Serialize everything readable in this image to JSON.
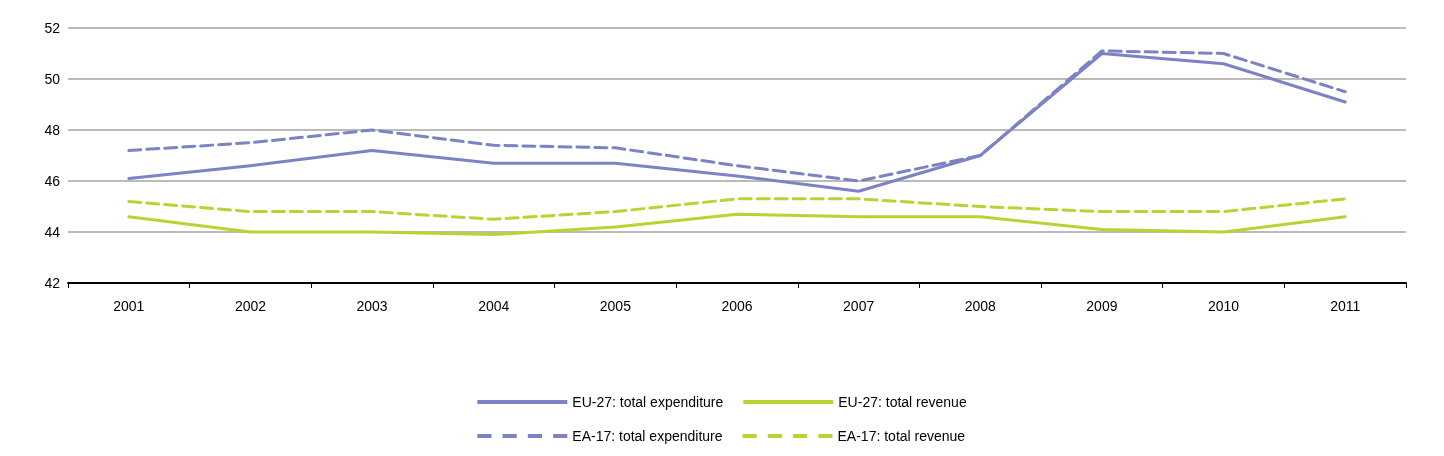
{
  "chart_data": {
    "type": "line",
    "categories": [
      "2001",
      "2002",
      "2003",
      "2004",
      "2005",
      "2006",
      "2007",
      "2008",
      "2009",
      "2010",
      "2011"
    ],
    "series": [
      {
        "name": "EU-27: total expenditure",
        "color": "#7b83c4",
        "line_style": "solid",
        "values": [
          46.1,
          46.6,
          47.2,
          46.7,
          46.7,
          46.2,
          45.6,
          47.0,
          51.0,
          50.6,
          49.1
        ]
      },
      {
        "name": "EU-27: total revenue",
        "color": "#b8d432",
        "line_style": "solid",
        "values": [
          44.6,
          44.0,
          44.0,
          43.9,
          44.2,
          44.7,
          44.6,
          44.6,
          44.1,
          44.0,
          44.6
        ]
      },
      {
        "name": "EA-17: total expenditure",
        "color": "#7b83c4",
        "line_style": "dashed",
        "values": [
          47.2,
          47.5,
          48.0,
          47.4,
          47.3,
          46.6,
          46.0,
          47.0,
          51.1,
          51.0,
          49.5
        ]
      },
      {
        "name": "EA-17: total revenue",
        "color": "#b8d432",
        "line_style": "dashed",
        "values": [
          45.2,
          44.8,
          44.8,
          44.5,
          44.8,
          45.3,
          45.3,
          45.0,
          44.8,
          44.8,
          45.3
        ]
      }
    ],
    "ylim": [
      42,
      52
    ],
    "yticks": [
      42,
      44,
      46,
      48,
      50,
      52
    ],
    "grid": "y",
    "legend": "bottom",
    "marker": "none"
  }
}
